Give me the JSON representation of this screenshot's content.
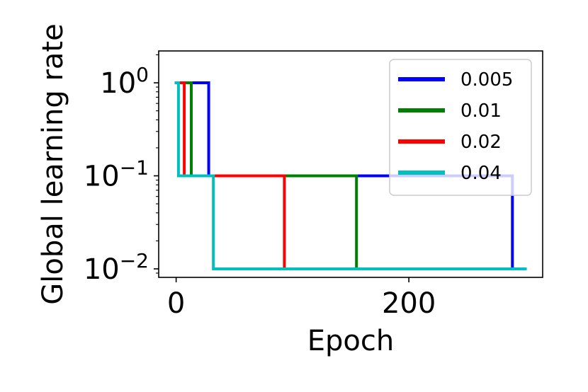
{
  "chart_data": {
    "type": "line",
    "title": "",
    "xlabel": "Epoch",
    "ylabel": "Global learning rate",
    "yscale": "log",
    "xlim": [
      -15,
      315
    ],
    "ylim": [
      0.0081,
      2.2
    ],
    "x_ticks": [
      {
        "value": 0,
        "label": "0"
      },
      {
        "value": 200,
        "label": "200"
      }
    ],
    "y_ticks": [
      {
        "value": 1,
        "base": "10",
        "exp": "0"
      },
      {
        "value": 0.1,
        "base": "10",
        "exp": "−1"
      },
      {
        "value": 0.01,
        "base": "10",
        "exp": "−2"
      }
    ],
    "grid": false,
    "legend_position": "top-right",
    "series": [
      {
        "name": "0.005",
        "color": "#0000ff",
        "x": [
          0,
          28,
          28,
          289,
          289,
          300
        ],
        "y": [
          1,
          1,
          0.1,
          0.1,
          0.01,
          0.01
        ]
      },
      {
        "name": "0.01",
        "color": "#008000",
        "x": [
          0,
          13,
          13,
          155,
          155,
          300
        ],
        "y": [
          1,
          1,
          0.1,
          0.1,
          0.01,
          0.01
        ]
      },
      {
        "name": "0.02",
        "color": "#ff0000",
        "x": [
          0,
          7,
          7,
          93,
          93,
          300
        ],
        "y": [
          1,
          1,
          0.1,
          0.1,
          0.01,
          0.01
        ]
      },
      {
        "name": "0.04",
        "color": "#00bfbf",
        "x": [
          0,
          2,
          2,
          32,
          32,
          300
        ],
        "y": [
          1,
          1,
          0.1,
          0.1,
          0.01,
          0.01
        ]
      }
    ]
  }
}
